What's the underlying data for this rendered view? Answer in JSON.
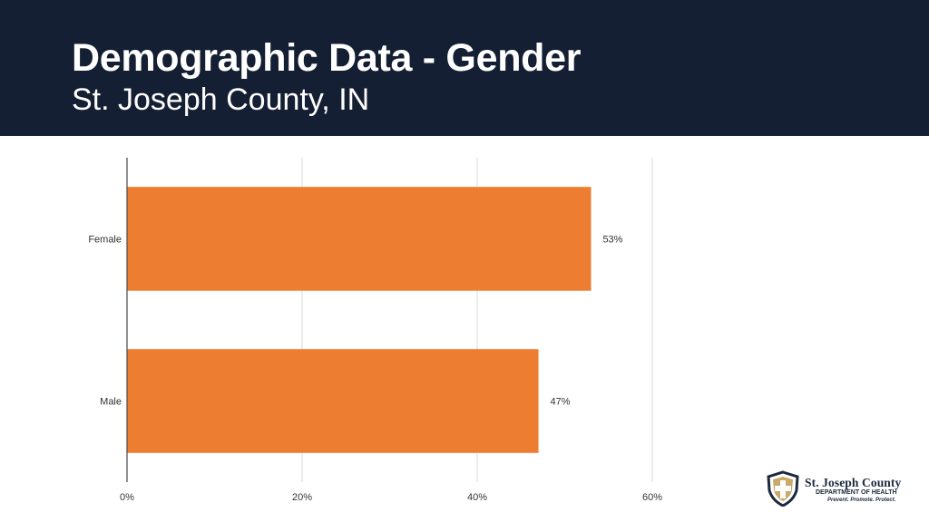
{
  "header": {
    "title": "Demographic Data - Gender",
    "subtitle": "St. Joseph County, IN"
  },
  "chart_data": {
    "type": "bar",
    "orientation": "horizontal",
    "categories": [
      "Female",
      "Male"
    ],
    "values": [
      53,
      47
    ],
    "data_labels": [
      "53%",
      "47%"
    ],
    "xlim": [
      0,
      60
    ],
    "x_ticks": [
      0,
      20,
      40,
      60
    ],
    "x_tick_labels": [
      "0%",
      "20%",
      "40%",
      "60%"
    ],
    "grid": true,
    "legend": "none",
    "bar_color": "#ed7d31",
    "grid_color": "#d9d9d9"
  },
  "logo": {
    "name": "St. Joseph County",
    "department": "DEPARTMENT OF HEALTH",
    "tagline": "Prevent. Promote. Protect.",
    "icon": "shield-cross-icon",
    "colors": {
      "navy": "#1c2a3e",
      "tan": "#c9a86a"
    }
  }
}
